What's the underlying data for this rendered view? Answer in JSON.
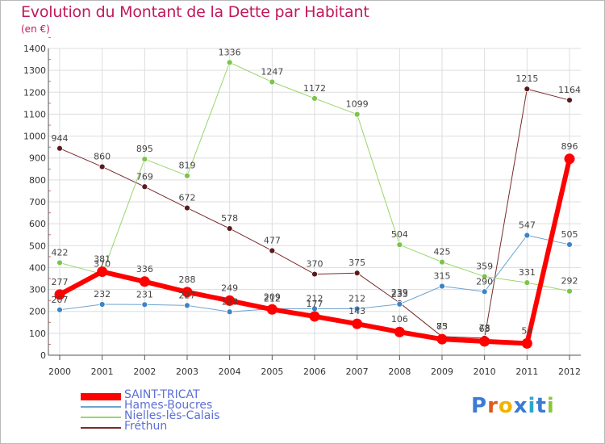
{
  "title": "Evolution du Montant de la Dette par Habitant",
  "unit": "(en €)",
  "logo": {
    "text": "Proxiti",
    "colors": [
      "#3a7bd5",
      "#e05a1c",
      "#f0b400",
      "#3a7bd5",
      "#2aa8c9",
      "#3a7bd5",
      "#8fc43f"
    ]
  },
  "chart_data": {
    "type": "line",
    "x": [
      "2000",
      "2001",
      "2002",
      "2003",
      "2004",
      "2005",
      "2006",
      "2007",
      "2008",
      "2009",
      "2010",
      "2011",
      "2012"
    ],
    "ylim": [
      0,
      1400
    ],
    "yticks": [
      0,
      100,
      200,
      300,
      400,
      500,
      600,
      700,
      800,
      900,
      1000,
      1100,
      1200,
      1300,
      1400
    ],
    "grid": true,
    "legend_position": "bottom-left",
    "series": [
      {
        "name": "Fréthun",
        "color": "#7a2a2a",
        "point_color": "#5b1a1a",
        "stroke": 1,
        "radius": 3.5,
        "values": [
          944,
          860,
          769,
          672,
          578,
          477,
          370,
          375,
          239,
          85,
          78,
          1215,
          1164
        ]
      },
      {
        "name": "Nielles-lès-Calais",
        "color": "#9ad66a",
        "point_color": "#7cc44a",
        "stroke": 1,
        "radius": 3.5,
        "values": [
          422,
          370,
          895,
          819,
          1336,
          1247,
          1172,
          1099,
          504,
          425,
          359,
          331,
          292
        ]
      },
      {
        "name": "Hames-Boucres",
        "color": "#6fa3cf",
        "point_color": "#3d84c6",
        "stroke": 1,
        "radius": 3.5,
        "values": [
          207,
          232,
          231,
          227,
          198,
          212,
          212,
          212,
          233,
          315,
          290,
          547,
          505
        ]
      },
      {
        "name": "SAINT-TRICAT",
        "color": "#ff0000",
        "point_color": "#ff0000",
        "stroke": 6,
        "radius": 6.5,
        "values": [
          277,
          381,
          336,
          288,
          249,
          209,
          177,
          143,
          106,
          73,
          63,
          54,
          896
        ]
      }
    ],
    "legend_order": [
      "SAINT-TRICAT",
      "Hames-Boucres",
      "Nielles-lès-Calais",
      "Fréthun"
    ]
  }
}
